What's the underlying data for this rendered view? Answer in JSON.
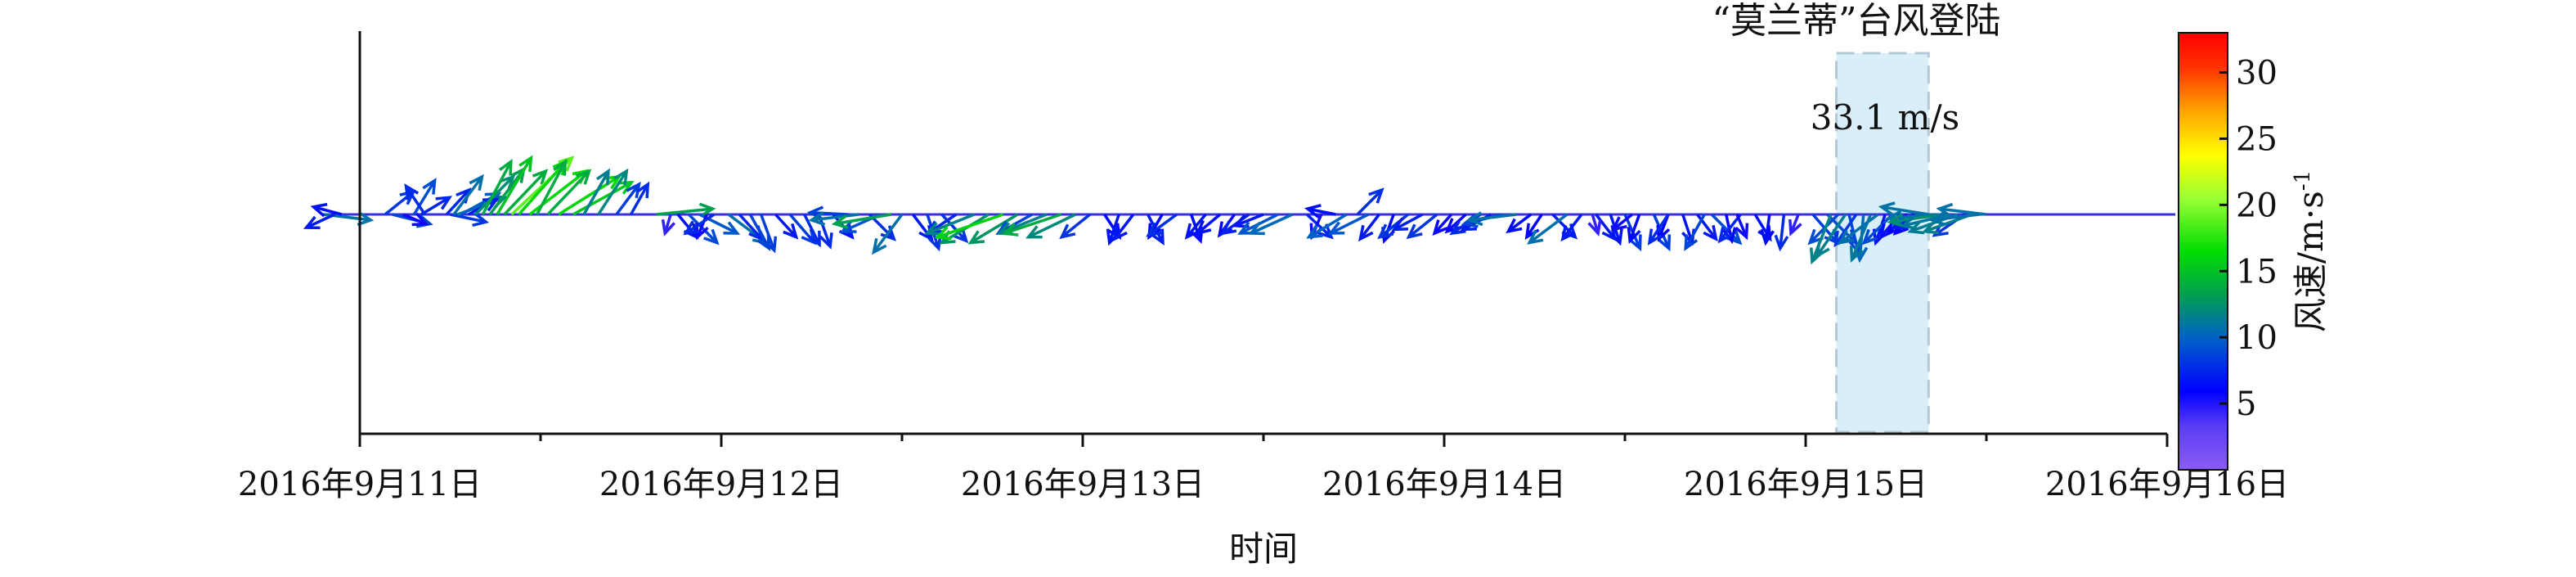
{
  "chart_data": {
    "type": "stick-vector",
    "xlabel": "时间",
    "x_ticks": [
      "2016年9月11日",
      "2016年9月12日",
      "2016年9月13日",
      "2016年9月14日",
      "2016年9月15日",
      "2016年9月16日"
    ],
    "x_range": [
      "2016-09-11",
      "2016-09-16"
    ],
    "colorbar": {
      "label": "风速/m·s",
      "label_superscript": "-1",
      "min": 0,
      "max": 33,
      "ticks": [
        "5",
        "10",
        "15",
        "20",
        "25",
        "30"
      ]
    },
    "landfall_window": {
      "start_day": 4.085,
      "end_day": 4.34,
      "title": "“莫兰蒂”台风登陆",
      "max_label": "33.1 m/s"
    },
    "vectors": [
      {
        "t": -0.1,
        "u": 2.5,
        "v": -0.3
      },
      {
        "t": -0.07,
        "u": -1.5,
        "v": -0.7
      },
      {
        "t": -0.05,
        "u": -1.5,
        "v": 0.4
      },
      {
        "t": 0.07,
        "u": 1.5,
        "v": 1.2
      },
      {
        "t": 0.09,
        "u": 2.0,
        "v": -0.5
      },
      {
        "t": 0.12,
        "u": 1.2,
        "v": -0.5
      },
      {
        "t": 0.15,
        "u": 1.1,
        "v": 1.8
      },
      {
        "t": 0.17,
        "u": 1.5,
        "v": 0.9
      },
      {
        "t": 0.18,
        "u": -1.0,
        "v": 1.5
      },
      {
        "t": 0.24,
        "u": 1.2,
        "v": 1.3
      },
      {
        "t": 0.25,
        "u": 1.9,
        "v": -0.4
      },
      {
        "t": 0.26,
        "u": 1.5,
        "v": 2.0
      },
      {
        "t": 0.27,
        "u": 2.5,
        "v": 0.9
      },
      {
        "t": 0.28,
        "u": 2.0,
        "v": 1.1
      },
      {
        "t": 0.3,
        "u": 1.5,
        "v": 0.8
      },
      {
        "t": 0.32,
        "u": 2.0,
        "v": 2.0
      },
      {
        "t": 0.34,
        "u": 1.5,
        "v": 2.8
      },
      {
        "t": 0.36,
        "u": 1.8,
        "v": 2.4
      },
      {
        "t": 0.38,
        "u": 1.8,
        "v": 3.0
      },
      {
        "t": 0.4,
        "u": 2.2,
        "v": 2.3
      },
      {
        "t": 0.42,
        "u": 3.2,
        "v": 3.0
      },
      {
        "t": 0.44,
        "u": 2.5,
        "v": 2.8
      },
      {
        "t": 0.47,
        "u": 3.0,
        "v": 2.3
      },
      {
        "t": 0.49,
        "u": 1.5,
        "v": 2.8
      },
      {
        "t": 0.52,
        "u": 2.2,
        "v": 2.3
      },
      {
        "t": 0.55,
        "u": 3.2,
        "v": 2.0
      },
      {
        "t": 0.59,
        "u": 3.1,
        "v": 1.7
      },
      {
        "t": 0.62,
        "u": 1.3,
        "v": 2.3
      },
      {
        "t": 0.66,
        "u": 1.5,
        "v": 2.3
      },
      {
        "t": 0.71,
        "u": 1.2,
        "v": 1.6
      },
      {
        "t": 0.75,
        "u": 0.9,
        "v": 1.6
      },
      {
        "t": 0.82,
        "u": 3.0,
        "v": 0.3
      },
      {
        "t": 0.86,
        "u": -0.3,
        "v": -1.0
      },
      {
        "t": 0.88,
        "u": 1.0,
        "v": -1.2
      },
      {
        "t": 0.91,
        "u": 1.5,
        "v": -1.5
      },
      {
        "t": 0.94,
        "u": 2.0,
        "v": -1.0
      },
      {
        "t": 0.96,
        "u": -0.5,
        "v": -1.2
      },
      {
        "t": 0.98,
        "u": -1.5,
        "v": -1.0
      },
      {
        "t": 1.02,
        "u": 2.0,
        "v": -1.5
      },
      {
        "t": 1.05,
        "u": 1.2,
        "v": -1.3
      },
      {
        "t": 1.08,
        "u": 1.0,
        "v": -1.8
      },
      {
        "t": 1.11,
        "u": 0.7,
        "v": -1.9
      },
      {
        "t": 1.15,
        "u": 1.1,
        "v": -1.2
      },
      {
        "t": 1.19,
        "u": 1.3,
        "v": -1.5
      },
      {
        "t": 1.23,
        "u": 0.8,
        "v": -1.6
      },
      {
        "t": 1.27,
        "u": 0.6,
        "v": -1.7
      },
      {
        "t": 1.31,
        "u": 1.0,
        "v": -1.2
      },
      {
        "t": 1.35,
        "u": -2.0,
        "v": 0.1
      },
      {
        "t": 1.38,
        "u": -2.5,
        "v": -0.3
      },
      {
        "t": 1.41,
        "u": 1.3,
        "v": -1.3
      },
      {
        "t": 1.44,
        "u": -2.0,
        "v": -0.9
      },
      {
        "t": 1.47,
        "u": -3.0,
        "v": -0.5
      },
      {
        "t": 1.5,
        "u": -1.5,
        "v": -2.0
      },
      {
        "t": 1.53,
        "u": 1.0,
        "v": -1.3
      },
      {
        "t": 1.57,
        "u": 0.6,
        "v": -1.8
      },
      {
        "t": 1.61,
        "u": 1.3,
        "v": -1.4
      },
      {
        "t": 1.65,
        "u": -1.5,
        "v": -1.0
      },
      {
        "t": 1.7,
        "u": -2.5,
        "v": -1.0
      },
      {
        "t": 1.74,
        "u": -2.5,
        "v": -1.5
      },
      {
        "t": 1.78,
        "u": -3.5,
        "v": -1.2
      },
      {
        "t": 1.82,
        "u": -2.5,
        "v": -1.5
      },
      {
        "t": 1.86,
        "u": -1.8,
        "v": -1.0
      },
      {
        "t": 1.9,
        "u": -2.5,
        "v": -1.0
      },
      {
        "t": 1.94,
        "u": -3.0,
        "v": -1.0
      },
      {
        "t": 1.98,
        "u": -2.5,
        "v": -1.2
      },
      {
        "t": 2.02,
        "u": -1.5,
        "v": -1.2
      },
      {
        "t": 2.06,
        "u": 0.8,
        "v": -1.2
      },
      {
        "t": 2.1,
        "u": -0.5,
        "v": -1.5
      },
      {
        "t": 2.14,
        "u": -1.0,
        "v": -1.3
      },
      {
        "t": 2.18,
        "u": 0.8,
        "v": -1.5
      },
      {
        "t": 2.22,
        "u": -0.7,
        "v": -1.2
      },
      {
        "t": 2.26,
        "u": -1.5,
        "v": -1.1
      },
      {
        "t": 2.3,
        "u": 0.5,
        "v": -1.4
      },
      {
        "t": 2.34,
        "u": -1.0,
        "v": -1.2
      },
      {
        "t": 2.38,
        "u": -1.2,
        "v": -1.0
      },
      {
        "t": 2.42,
        "u": -0.8,
        "v": -1.1
      },
      {
        "t": 2.46,
        "u": -1.4,
        "v": -1.0
      },
      {
        "t": 2.5,
        "u": -1.5,
        "v": -0.6
      },
      {
        "t": 2.54,
        "u": -2.0,
        "v": -1.0
      },
      {
        "t": 2.58,
        "u": -2.2,
        "v": -1.0
      },
      {
        "t": 2.62,
        "u": 1.3,
        "v": -1.2
      },
      {
        "t": 2.66,
        "u": -0.5,
        "v": -1.2
      },
      {
        "t": 2.7,
        "u": -1.5,
        "v": 0.3
      },
      {
        "t": 2.73,
        "u": -2.0,
        "v": -1.2
      },
      {
        "t": 2.76,
        "u": 1.3,
        "v": 1.3
      },
      {
        "t": 2.79,
        "u": -2.0,
        "v": -1.0
      },
      {
        "t": 2.82,
        "u": -1.0,
        "v": -1.3
      },
      {
        "t": 2.86,
        "u": -0.5,
        "v": -1.4
      },
      {
        "t": 2.9,
        "u": -1.5,
        "v": -1.2
      },
      {
        "t": 2.94,
        "u": -1.5,
        "v": -0.8
      },
      {
        "t": 2.98,
        "u": -1.5,
        "v": -1.2
      },
      {
        "t": 3.02,
        "u": -0.9,
        "v": -1.0
      },
      {
        "t": 3.06,
        "u": -1.0,
        "v": -0.9
      },
      {
        "t": 3.1,
        "u": -1.5,
        "v": -1.0
      },
      {
        "t": 3.13,
        "u": -1.5,
        "v": -0.8
      },
      {
        "t": 3.16,
        "u": -2.0,
        "v": -0.5
      },
      {
        "t": 3.2,
        "u": -2.5,
        "v": -0.3
      },
      {
        "t": 3.24,
        "u": -1.2,
        "v": -0.9
      },
      {
        "t": 3.27,
        "u": -0.8,
        "v": -1.2
      },
      {
        "t": 3.3,
        "u": 1.2,
        "v": -1.2
      },
      {
        "t": 3.34,
        "u": -2.0,
        "v": -1.5
      },
      {
        "t": 3.38,
        "u": -1.0,
        "v": -1.3
      },
      {
        "t": 3.42,
        "u": 1.0,
        "v": -1.3
      },
      {
        "t": 3.46,
        "u": 0.5,
        "v": -1.5
      },
      {
        "t": 3.5,
        "u": 0.8,
        "v": -1.8
      },
      {
        "t": 3.54,
        "u": -0.5,
        "v": -1.4
      },
      {
        "t": 3.58,
        "u": 0.8,
        "v": -1.8
      },
      {
        "t": 3.62,
        "u": -0.5,
        "v": -1.3
      },
      {
        "t": 3.66,
        "u": 0.5,
        "v": -1.5
      },
      {
        "t": 3.7,
        "u": 1.0,
        "v": -1.3
      },
      {
        "t": 3.74,
        "u": 1.5,
        "v": -1.5
      },
      {
        "t": 3.78,
        "u": 0.3,
        "v": -1.4
      },
      {
        "t": 3.82,
        "u": -1.1,
        "v": -1.4
      },
      {
        "t": 3.86,
        "u": 0.8,
        "v": -1.3
      },
      {
        "t": 3.9,
        "u": -0.2,
        "v": -1.5
      },
      {
        "t": 3.94,
        "u": -0.2,
        "v": -1.8
      },
      {
        "t": 3.98,
        "u": -0.4,
        "v": -1.0
      },
      {
        "t": 4.02,
        "u": 1.3,
        "v": -1.5
      },
      {
        "t": 4.06,
        "u": 1.5,
        "v": -1.5
      },
      {
        "t": 3.41,
        "u": 0.3,
        "v": -1.0
      },
      {
        "t": 3.52,
        "u": -1.0,
        "v": -0.8
      },
      {
        "t": 3.62,
        "u": -1.0,
        "v": -1.5
      },
      {
        "t": 3.72,
        "u": -1.0,
        "v": -1.8
      },
      {
        "t": 3.81,
        "u": 0.5,
        "v": -1.2
      },
      {
        "t": 4.09,
        "u": -1.5,
        "v": -1.5
      },
      {
        "t": 4.11,
        "u": -1.5,
        "v": -2.2
      },
      {
        "t": 4.07,
        "u": -1.0,
        "v": -2.5
      },
      {
        "t": 4.12,
        "u": 0.5,
        "v": -2.0
      },
      {
        "t": 4.14,
        "u": -1.1,
        "v": -1.6
      },
      {
        "t": 4.16,
        "u": -0.2,
        "v": -2.4
      },
      {
        "t": 4.18,
        "u": -1.0,
        "v": -2.4
      },
      {
        "t": 4.2,
        "u": -2.0,
        "v": -1.5
      },
      {
        "t": 4.22,
        "u": -0.5,
        "v": -1.5
      },
      {
        "t": 4.24,
        "u": -1.5,
        "v": -1.5
      },
      {
        "t": 4.26,
        "u": -1.0,
        "v": -1.2
      },
      {
        "t": 4.28,
        "u": -1.0,
        "v": -1.0
      },
      {
        "t": 4.3,
        "u": -1.0,
        "v": -1.0
      },
      {
        "t": 4.32,
        "u": -1.5,
        "v": -0.7
      },
      {
        "t": 4.34,
        "u": -2.5,
        "v": 0.4
      },
      {
        "t": 4.36,
        "u": -2.5,
        "v": -0.2
      },
      {
        "t": 4.38,
        "u": -2.8,
        "v": -0.4
      },
      {
        "t": 4.4,
        "u": -2.5,
        "v": -0.6
      },
      {
        "t": 4.42,
        "u": -2.5,
        "v": -0.9
      },
      {
        "t": 4.44,
        "u": -1.6,
        "v": -1.1
      },
      {
        "t": 4.46,
        "u": -2.5,
        "v": -0.9
      },
      {
        "t": 4.48,
        "u": -2.5,
        "v": -0.3
      },
      {
        "t": 4.5,
        "u": -2.5,
        "v": 0.3
      }
    ]
  }
}
